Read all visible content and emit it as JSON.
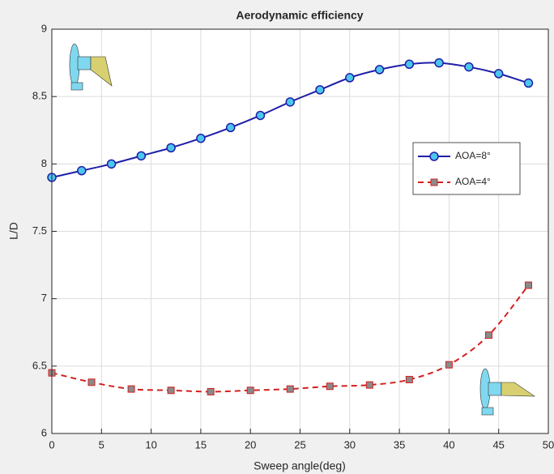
{
  "chart_data": {
    "type": "line",
    "title": "Aerodynamic efficiency",
    "x_label": "Sweep angle(deg)",
    "y_label": "L/D",
    "xlim": [
      0,
      50
    ],
    "xticks": [
      0,
      5,
      10,
      15,
      20,
      25,
      30,
      35,
      40,
      45,
      50
    ],
    "ylim": [
      6,
      9
    ],
    "yticks": [
      6,
      6.5,
      7,
      7.5,
      8,
      8.5,
      9
    ],
    "grid": true,
    "legend_position": "right",
    "series": [
      {
        "name": "AOA=8°",
        "color": "#1f1fa8",
        "line_style": "solid",
        "marker": "circle",
        "marker_fill": "#4cc6ec",
        "x": [
          0,
          3,
          6,
          9,
          12,
          15,
          18,
          21,
          24,
          27,
          30,
          33,
          36,
          39,
          42,
          45,
          48
        ],
        "values": [
          7.9,
          7.95,
          8.0,
          8.06,
          8.12,
          8.19,
          8.27,
          8.36,
          8.46,
          8.55,
          8.64,
          8.7,
          8.74,
          8.75,
          8.72,
          8.67,
          8.6
        ]
      },
      {
        "name": "AOA=4°",
        "color": "#d42020",
        "line_style": "dashed",
        "marker": "square",
        "marker_fill": "#8a8a8a",
        "x": [
          0,
          4,
          8,
          12,
          16,
          20,
          24,
          28,
          32,
          36,
          40,
          44,
          48
        ],
        "values": [
          6.45,
          6.38,
          6.33,
          6.32,
          6.31,
          6.32,
          6.33,
          6.35,
          6.36,
          6.4,
          6.51,
          6.73,
          7.1
        ]
      }
    ]
  }
}
